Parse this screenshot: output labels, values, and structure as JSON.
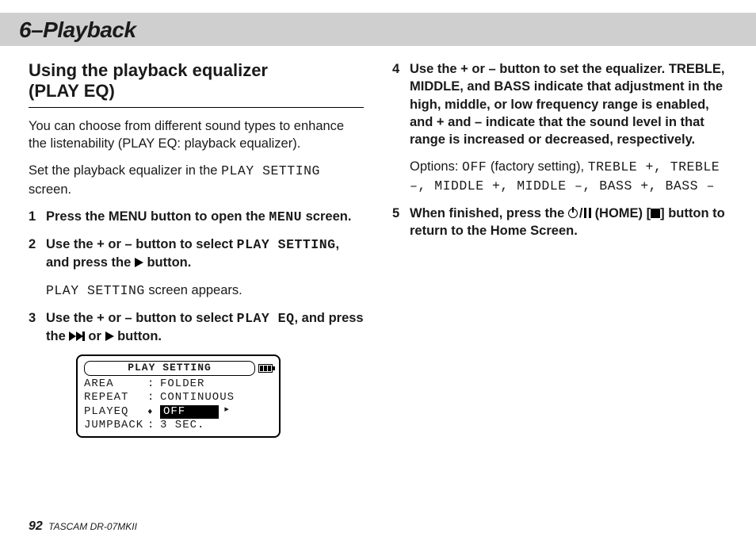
{
  "header": {
    "title": "6–Playback"
  },
  "left": {
    "section_title_l1": "Using the playback equalizer",
    "section_title_l2": "(PLAY EQ)",
    "intro": "You can choose from different sound types to enhance the listenability (PLAY EQ: playback equalizer).",
    "set_prefix": "Set the playback equalizer in the ",
    "set_mono": "PLAY SETTING",
    "set_suffix": " screen.",
    "step1_num": "1",
    "step1_a": "Press the MENU button to open the ",
    "step1_mono": "MENU",
    "step1_b": " screen.",
    "step2_num": "2",
    "step2_a": "Use the + or – button to select ",
    "step2_mono": "PLAY SETTING",
    "step2_b": ", and press the ",
    "step2_c": " button.",
    "step2_sub_mono": "PLAY SETTING",
    "step2_sub_text": " screen appears.",
    "step3_num": "3",
    "step3_a": "Use the + or – button to select ",
    "step3_mono": "PLAY EQ",
    "step3_b": ", and press the ",
    "step3_c": " or ",
    "step3_d": " button.",
    "lcd": {
      "title": "PLAY SETTING",
      "rows": [
        {
          "label": "AREA",
          "value": "FOLDER",
          "selected": false
        },
        {
          "label": "REPEAT",
          "value": "CONTINUOUS",
          "selected": false
        },
        {
          "label": "PLAYEQ",
          "value": "OFF",
          "selected": true
        },
        {
          "label": "JUMPBACK",
          "value": "3 SEC.",
          "selected": false
        }
      ]
    }
  },
  "right": {
    "step4_num": "4",
    "step4_body": "Use the + or – button to set the equalizer. TREBLE, MIDDLE, and BASS indicate that adjustment in the high, middle, or low frequency range is enabled, and + and – indicate that the sound level in that range is increased or decreased, respectively.",
    "opts_prefix": "Options: ",
    "opts_off": "OFF",
    "opts_mid": " (factory setting), ",
    "opts_list": "TREBLE +, TREBLE –, MIDDLE +, MIDDLE –, BASS +, BASS –",
    "step5_num": "5",
    "step5_a": "When finished, press the ",
    "step5_home": "(HOME) [",
    "step5_b": "] button to return to the Home Screen."
  },
  "footer": {
    "page": "92",
    "model": "TASCAM DR-07MKII"
  }
}
